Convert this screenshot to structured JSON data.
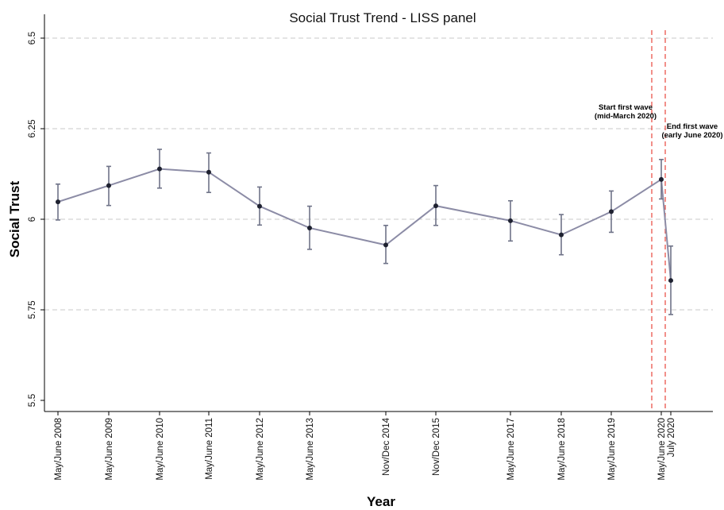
{
  "chart_data": {
    "type": "line",
    "title": "Social Trust Trend - LISS panel",
    "xlabel": "Year",
    "ylabel": "Social Trust",
    "ylim": [
      5.5,
      6.5
    ],
    "yticks": [
      "5.5",
      "5.75",
      "6",
      "6.25",
      "6.5"
    ],
    "grid": "horizontal dashed",
    "categories": [
      "May/June 2008",
      "May/June 2009",
      "May/June 2010",
      "May/June 2011",
      "May/June 2012",
      "May/June 2013",
      "Nov/Dec 2014",
      "Nov/Dec 2015",
      "May/June 2017",
      "May/June 2018",
      "May/June 2019",
      "May/June 2020",
      "July 2020"
    ],
    "series": [
      {
        "values": [
          6.048,
          6.093,
          6.139,
          6.13,
          6.036,
          5.976,
          5.929,
          6.037,
          5.996,
          5.957,
          6.021,
          6.11,
          5.831
        ],
        "ci_lower": [
          5.998,
          6.038,
          6.086,
          6.074,
          5.984,
          5.917,
          5.878,
          5.983,
          5.94,
          5.902,
          5.964,
          6.056,
          5.737
        ],
        "ci_upper": [
          6.097,
          6.146,
          6.193,
          6.183,
          6.089,
          6.036,
          5.983,
          6.093,
          6.051,
          6.013,
          6.078,
          6.165,
          5.926
        ],
        "color": "#8c8ca6"
      }
    ],
    "vlines": [
      {
        "label_lines": [
          "Start first wave",
          "(mid-March 2020)"
        ],
        "color": "#e8463c"
      },
      {
        "label_lines": [
          "End first wave",
          "(early June 2020)"
        ],
        "color": "#e8463c"
      }
    ]
  }
}
